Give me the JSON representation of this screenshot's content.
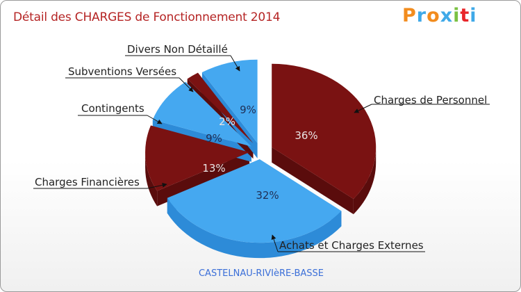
{
  "header": {
    "title": "Détail des CHARGES de Fonctionnement 2014",
    "logo": [
      "P",
      "r",
      "o",
      "x",
      "i",
      "t",
      "i"
    ],
    "logo_colors": [
      "#f28c1e",
      "#3fa9e8",
      "#f28c1e",
      "#3fa9e8",
      "#7ac142",
      "#e8262a",
      "#3fa9e8"
    ]
  },
  "footer": {
    "commune": "CASTELNAU-RIVIèRE-BASSE"
  },
  "colors": {
    "dark_red": "#7a1212",
    "dark_red_side": "#5a0c0c",
    "blue": "#45a8f0",
    "blue_side": "#2d8bd8"
  },
  "chart_data": {
    "type": "pie",
    "title": "Détail des CHARGES de Fonctionnement 2014",
    "slices": [
      {
        "label": "Charges de Personnel",
        "value": 36,
        "pct_label": "36%",
        "color": "dark_red"
      },
      {
        "label": "Achats et Charges Externes",
        "value": 32,
        "pct_label": "32%",
        "color": "blue"
      },
      {
        "label": "Charges Financières",
        "value": 13,
        "pct_label": "13%",
        "color": "dark_red"
      },
      {
        "label": "Contingents",
        "value": 9,
        "pct_label": "9%",
        "color": "blue"
      },
      {
        "label": "Subventions Versées",
        "value": 2,
        "pct_label": "2%",
        "color": "dark_red"
      },
      {
        "label": "Divers Non Détaillé",
        "value": 9,
        "pct_label": "9%",
        "color": "blue"
      }
    ]
  }
}
